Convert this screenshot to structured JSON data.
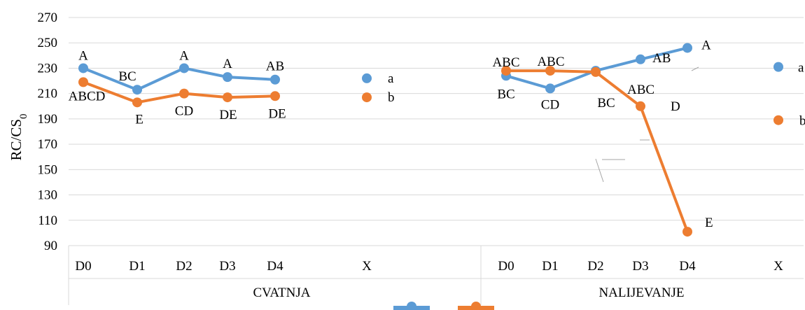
{
  "chart_data": {
    "type": "line",
    "ylabel": "RC/CS",
    "ylabel_sub": "0",
    "ylim": [
      90,
      270
    ],
    "yticks": [
      90,
      110,
      130,
      150,
      170,
      190,
      210,
      230,
      250,
      270
    ],
    "grid": true,
    "groups": [
      {
        "name": "CVATNJA",
        "categories": [
          "D0",
          "D1",
          "D2",
          "D3",
          "D4",
          "X"
        ],
        "series": [
          {
            "values": [
              230,
              213,
              230,
              223,
              221,
              222
            ],
            "labels": [
              "A",
              "BC",
              "A",
              "A",
              "AB",
              "a"
            ]
          },
          {
            "values": [
              219,
              203,
              210,
              207,
              208,
              207
            ],
            "labels": [
              "ABCD",
              "E",
              "CD",
              "DE",
              "DE",
              "b"
            ]
          }
        ]
      },
      {
        "name": "NALIJEVANJE",
        "categories": [
          "D0",
          "D1",
          "D2",
          "D3",
          "D4",
          "X"
        ],
        "series": [
          {
            "values": [
              224,
              214,
              228,
              237,
              246,
              231
            ],
            "labels": [
              "BC",
              "CD",
              "ABC",
              "AB",
              "A",
              "a"
            ]
          },
          {
            "values": [
              228,
              228,
              227,
              200,
              101,
              189
            ],
            "labels": [
              "ABC",
              "ABC",
              "BC",
              "D",
              "E",
              "b"
            ]
          }
        ]
      }
    ],
    "legend": {
      "placement": "bottom",
      "entries": [
        "",
        ""
      ]
    }
  },
  "colors": {
    "series_a": "#5b9bd5",
    "series_b": "#ed7d31",
    "grid": "#d9d9d9",
    "leader": "#a6a6a6"
  }
}
